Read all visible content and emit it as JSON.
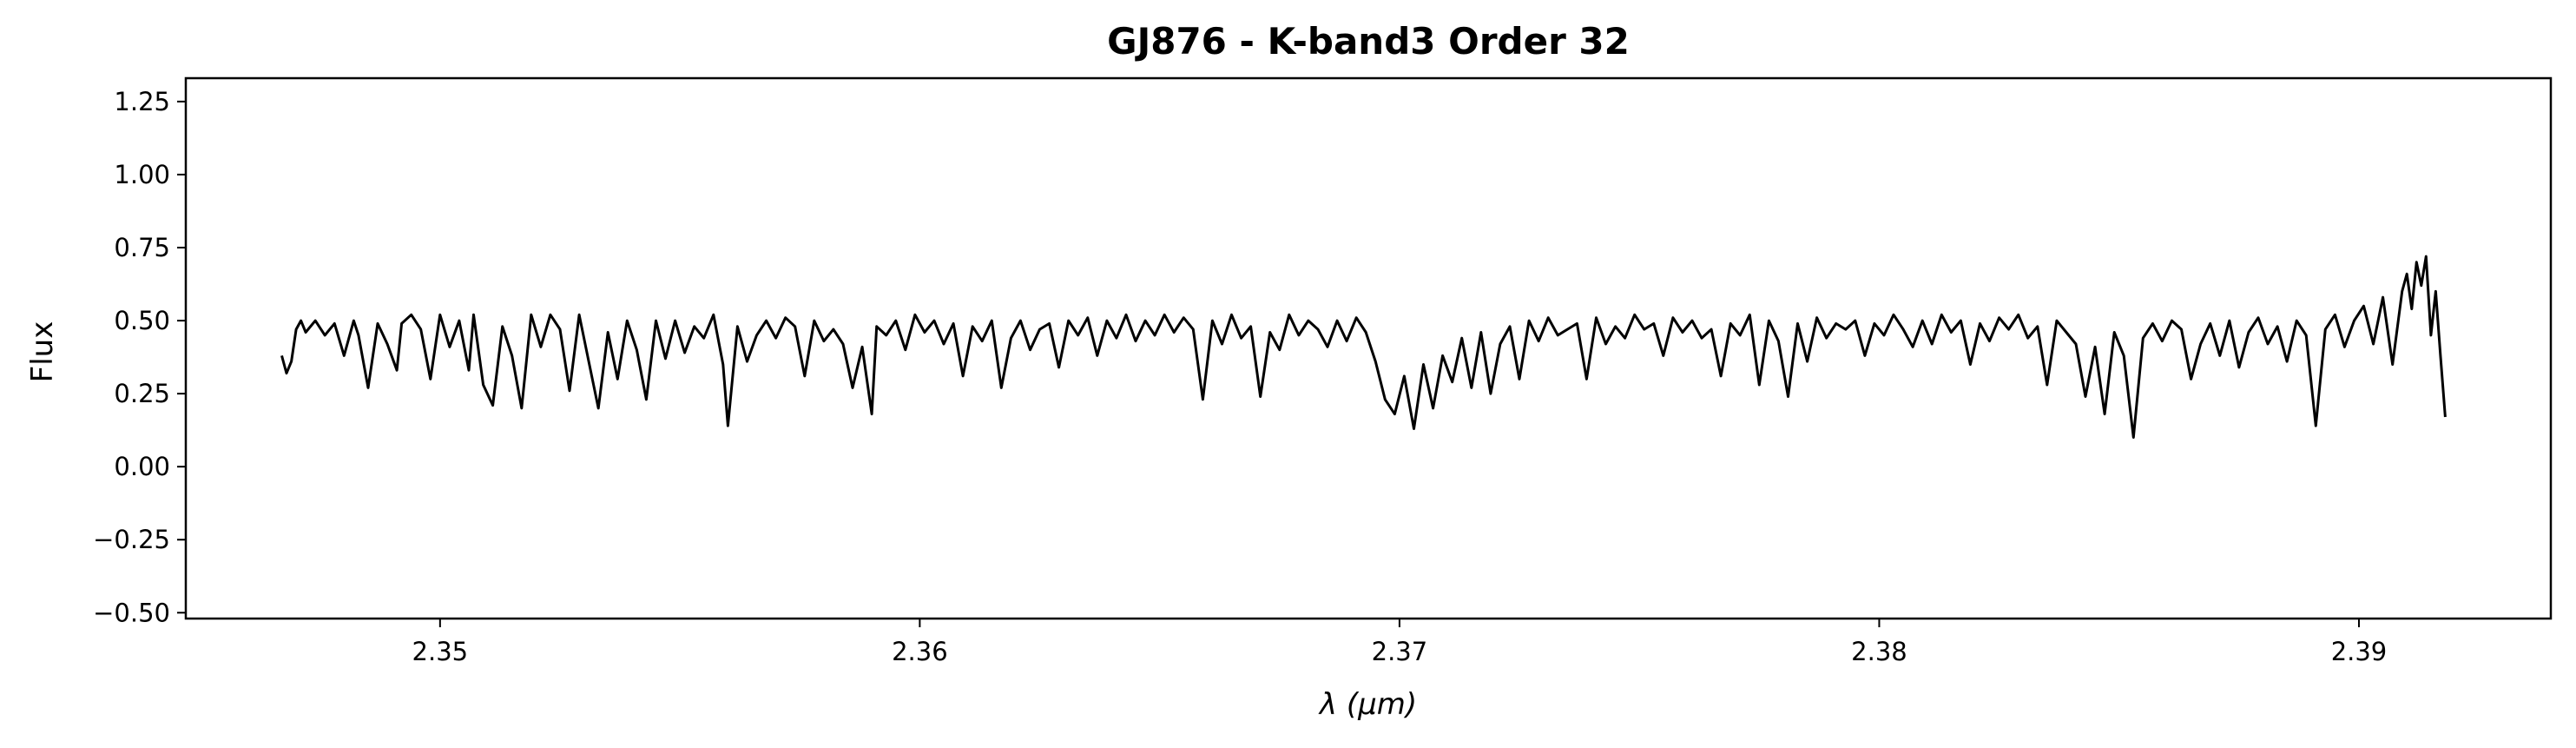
{
  "chart_data": {
    "type": "line",
    "title": "GJ876 - K-band3 Order 32",
    "xlabel": "λ (μm)",
    "ylabel": "Flux",
    "xlim": [
      2.3447,
      2.394
    ],
    "ylim": [
      -0.52,
      1.33
    ],
    "xticks": [
      2.35,
      2.36,
      2.37,
      2.38,
      2.39
    ],
    "xtick_labels": [
      "2.35",
      "2.36",
      "2.37",
      "2.38",
      "2.39"
    ],
    "yticks": [
      -0.5,
      -0.25,
      0.0,
      0.25,
      0.5,
      0.75,
      1.0,
      1.25
    ],
    "ytick_labels": [
      "−0.50",
      "−0.25",
      "0.00",
      "0.25",
      "0.50",
      "0.75",
      "1.00",
      "1.25"
    ],
    "grid": false,
    "line_color": "#000000",
    "series": [
      {
        "x": [
          2.3467,
          2.3468,
          2.3469,
          2.347,
          2.3471,
          2.3472,
          2.3474,
          2.3476,
          2.3478,
          2.348,
          2.3482,
          2.3483,
          2.3485,
          2.3487,
          2.3489,
          2.3491,
          2.3492,
          2.3494,
          2.3496,
          2.3498,
          2.35,
          2.3502,
          2.3504,
          2.3506,
          2.3507,
          2.3509,
          2.3511,
          2.3513,
          2.3515,
          2.3517,
          2.3519,
          2.3521,
          2.3523,
          2.3525,
          2.3527,
          2.3529,
          2.3531,
          2.3533,
          2.3535,
          2.3537,
          2.3539,
          2.3541,
          2.3543,
          2.3545,
          2.3547,
          2.3549,
          2.3551,
          2.3553,
          2.3555,
          2.3557,
          2.3559,
          2.356,
          2.3562,
          2.3564,
          2.3566,
          2.3568,
          2.357,
          2.3572,
          2.3574,
          2.3576,
          2.3578,
          2.358,
          2.3582,
          2.3584,
          2.3586,
          2.3588,
          2.359,
          2.3591,
          2.3593,
          2.3595,
          2.3597,
          2.3599,
          2.3601,
          2.3603,
          2.3605,
          2.3607,
          2.3609,
          2.3611,
          2.3613,
          2.3615,
          2.3617,
          2.3619,
          2.3621,
          2.3623,
          2.3625,
          2.3627,
          2.3629,
          2.3631,
          2.3633,
          2.3635,
          2.3637,
          2.3639,
          2.3641,
          2.3643,
          2.3645,
          2.3647,
          2.3649,
          2.3651,
          2.3653,
          2.3655,
          2.3657,
          2.3659,
          2.3661,
          2.3663,
          2.3665,
          2.3667,
          2.3669,
          2.3671,
          2.3673,
          2.3675,
          2.3677,
          2.3679,
          2.3681,
          2.3683,
          2.3685,
          2.3687,
          2.3689,
          2.3691,
          2.3693,
          2.3695,
          2.3697,
          2.3699,
          2.3701,
          2.3703,
          2.3705,
          2.3707,
          2.3709,
          2.3711,
          2.3713,
          2.3715,
          2.3717,
          2.3719,
          2.3721,
          2.3723,
          2.3725,
          2.3727,
          2.3729,
          2.3731,
          2.3733,
          2.3735,
          2.3737,
          2.3739,
          2.3741,
          2.3743,
          2.3745,
          2.3747,
          2.3749,
          2.3751,
          2.3753,
          2.3755,
          2.3757,
          2.3759,
          2.3761,
          2.3763,
          2.3765,
          2.3767,
          2.3769,
          2.3771,
          2.3773,
          2.3775,
          2.3777,
          2.3779,
          2.3781,
          2.3783,
          2.3785,
          2.3787,
          2.3789,
          2.3791,
          2.3793,
          2.3795,
          2.3797,
          2.3799,
          2.3801,
          2.3803,
          2.3805,
          2.3807,
          2.3809,
          2.3811,
          2.3813,
          2.3815,
          2.3817,
          2.3819,
          2.3821,
          2.3823,
          2.3825,
          2.3827,
          2.3829,
          2.3831,
          2.3833,
          2.3835,
          2.3837,
          2.3839,
          2.3841,
          2.3843,
          2.3845,
          2.3847,
          2.3849,
          2.3851,
          2.3853,
          2.3855,
          2.3857,
          2.3859,
          2.3861,
          2.3863,
          2.3865,
          2.3867,
          2.3869,
          2.3871,
          2.3873,
          2.3875,
          2.3877,
          2.3879,
          2.3881,
          2.3883,
          2.3885,
          2.3887,
          2.3889,
          2.3891,
          2.3893,
          2.3895,
          2.3897,
          2.3899,
          2.3901,
          2.3903,
          2.3905,
          2.3907,
          2.3909,
          2.391,
          2.3911,
          2.3912,
          2.3913,
          2.3914,
          2.3915,
          2.3916,
          2.3917,
          2.3918
        ],
        "y": [
          0.38,
          0.32,
          0.36,
          0.47,
          0.5,
          0.46,
          0.5,
          0.45,
          0.49,
          0.38,
          0.5,
          0.45,
          0.27,
          0.49,
          0.42,
          0.33,
          0.49,
          0.52,
          0.47,
          0.3,
          0.52,
          0.41,
          0.5,
          0.33,
          0.52,
          0.28,
          0.21,
          0.48,
          0.38,
          0.2,
          0.52,
          0.41,
          0.52,
          0.47,
          0.26,
          0.52,
          0.36,
          0.2,
          0.46,
          0.3,
          0.5,
          0.4,
          0.23,
          0.5,
          0.37,
          0.5,
          0.39,
          0.48,
          0.44,
          0.52,
          0.35,
          0.14,
          0.48,
          0.36,
          0.45,
          0.5,
          0.44,
          0.51,
          0.48,
          0.31,
          0.5,
          0.43,
          0.47,
          0.42,
          0.27,
          0.41,
          0.18,
          0.48,
          0.45,
          0.5,
          0.4,
          0.52,
          0.46,
          0.5,
          0.42,
          0.49,
          0.31,
          0.48,
          0.43,
          0.5,
          0.27,
          0.44,
          0.5,
          0.4,
          0.47,
          0.49,
          0.34,
          0.5,
          0.45,
          0.51,
          0.38,
          0.5,
          0.44,
          0.52,
          0.43,
          0.5,
          0.45,
          0.52,
          0.46,
          0.51,
          0.47,
          0.23,
          0.5,
          0.42,
          0.52,
          0.44,
          0.48,
          0.24,
          0.46,
          0.4,
          0.52,
          0.45,
          0.5,
          0.47,
          0.41,
          0.5,
          0.43,
          0.51,
          0.46,
          0.36,
          0.23,
          0.18,
          0.31,
          0.13,
          0.35,
          0.2,
          0.38,
          0.29,
          0.44,
          0.27,
          0.46,
          0.25,
          0.42,
          0.48,
          0.3,
          0.5,
          0.43,
          0.51,
          0.45,
          0.47,
          0.49,
          0.3,
          0.51,
          0.42,
          0.48,
          0.44,
          0.52,
          0.47,
          0.49,
          0.38,
          0.51,
          0.46,
          0.5,
          0.44,
          0.47,
          0.31,
          0.49,
          0.45,
          0.52,
          0.28,
          0.5,
          0.43,
          0.24,
          0.49,
          0.36,
          0.51,
          0.44,
          0.49,
          0.47,
          0.5,
          0.38,
          0.49,
          0.45,
          0.52,
          0.47,
          0.41,
          0.5,
          0.42,
          0.52,
          0.46,
          0.5,
          0.35,
          0.49,
          0.43,
          0.51,
          0.47,
          0.52,
          0.44,
          0.48,
          0.28,
          0.5,
          0.46,
          0.42,
          0.24,
          0.41,
          0.18,
          0.46,
          0.38,
          0.1,
          0.44,
          0.49,
          0.43,
          0.5,
          0.47,
          0.3,
          0.42,
          0.49,
          0.38,
          0.5,
          0.34,
          0.46,
          0.51,
          0.42,
          0.48,
          0.36,
          0.5,
          0.45,
          0.14,
          0.47,
          0.52,
          0.41,
          0.5,
          0.55,
          0.42,
          0.58,
          0.35,
          0.6,
          0.66,
          0.54,
          0.7,
          0.62,
          0.72,
          0.45,
          0.6,
          0.38,
          0.17
        ]
      }
    ]
  }
}
